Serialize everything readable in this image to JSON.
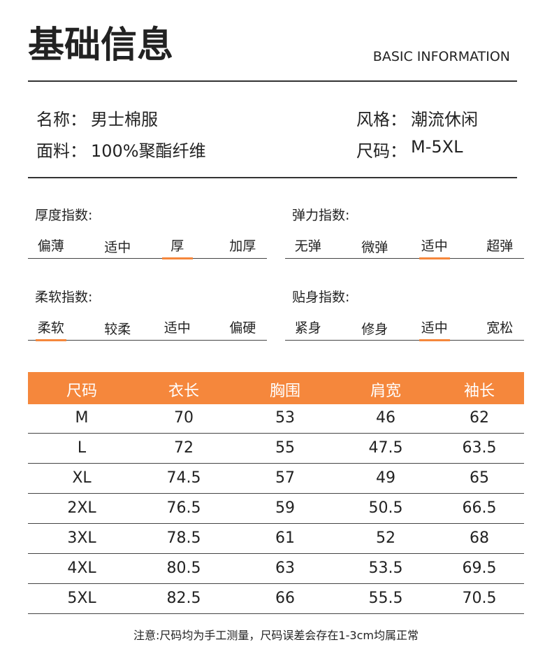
{
  "header": {
    "title": "基础信息",
    "subtitle": "BASIC INFORMATION"
  },
  "info": [
    {
      "label": "名称：",
      "value": "男士棉服"
    },
    {
      "label": "风格：",
      "value": "潮流休闲"
    },
    {
      "label": "面料：",
      "value": "100%聚酯纤维"
    },
    {
      "label": "尺码：",
      "value": "M-5XL"
    }
  ],
  "scales": [
    {
      "title": "厚度指数:",
      "options": [
        "偏薄",
        "适中",
        "厚",
        "加厚"
      ],
      "selected": 2
    },
    {
      "title": "弹力指数:",
      "options": [
        "无弹",
        "微弹",
        "适中",
        "超弹"
      ],
      "selected": 2
    },
    {
      "title": "柔软指数:",
      "options": [
        "柔软",
        "较柔",
        "适中",
        "偏硬"
      ],
      "selected": 0
    },
    {
      "title": "贴身指数:",
      "options": [
        "紧身",
        "修身",
        "适中",
        "宽松"
      ],
      "selected": 2
    }
  ],
  "table": {
    "header": [
      "尺码",
      "衣长",
      "胸围",
      "肩宽",
      "袖长"
    ],
    "rows": [
      [
        "M",
        70,
        53,
        46,
        62
      ],
      [
        "L",
        72,
        55,
        47.5,
        63.5
      ],
      [
        "XL",
        74.5,
        57,
        49,
        65
      ],
      [
        "2XL",
        76.5,
        59,
        50.5,
        66.5
      ],
      [
        "3XL",
        78.5,
        61,
        52,
        68
      ],
      [
        "4XL",
        80.5,
        63,
        53.5,
        69.5
      ],
      [
        "5XL",
        82.5,
        66,
        55.5,
        70.5
      ]
    ]
  },
  "note": "注意:尺码均为手工测量，尺码误差会存在1-3cm均属正常"
}
